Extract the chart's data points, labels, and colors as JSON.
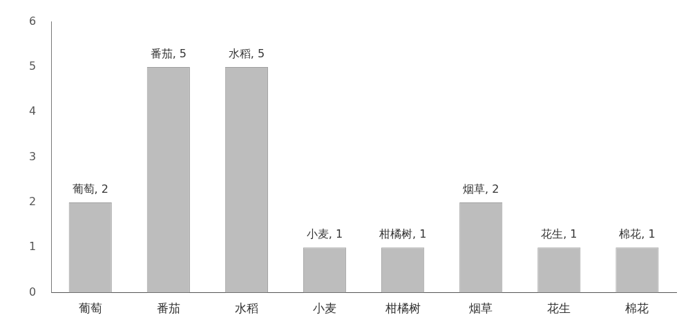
{
  "chart_data": {
    "type": "bar",
    "categories": [
      "葡萄",
      "番茄",
      "水稻",
      "小麦",
      "柑橘树",
      "烟草",
      "花生",
      "棉花"
    ],
    "values": [
      2,
      5,
      5,
      1,
      1,
      2,
      1,
      1
    ],
    "color": "#bdbdbd",
    "value_labels": [
      "葡萄, 2",
      "番茄, 5",
      "水稻, 5",
      "小麦, 1",
      "柑橘树, 1",
      "烟草, 2",
      "花生, 1",
      "棉花, 1"
    ],
    "ylim": [
      0,
      6
    ],
    "yticks": [
      0,
      1,
      2,
      3,
      4,
      5,
      6
    ],
    "grid": false,
    "legend": false
  }
}
